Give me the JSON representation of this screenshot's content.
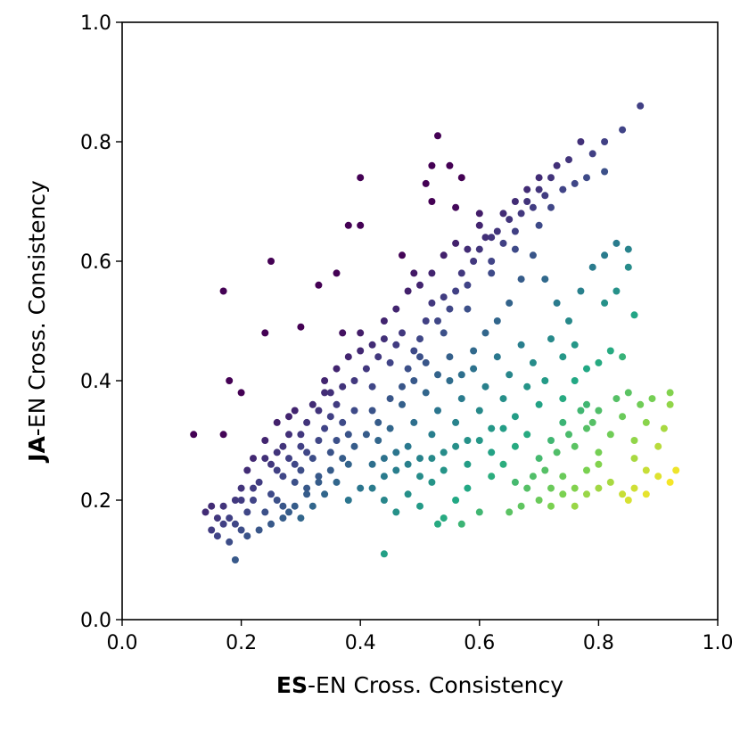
{
  "chart_data": {
    "type": "scatter",
    "xlabel_bold": "ES",
    "xlabel_rest": "-EN Cross. Consistency",
    "ylabel_bold": "JA",
    "ylabel_rest": "-EN Cross. Consistency",
    "xlim": [
      0.0,
      1.0
    ],
    "ylim": [
      0.0,
      1.0
    ],
    "x_ticks": [
      "0.0",
      "0.2",
      "0.4",
      "0.6",
      "0.8",
      "1.0"
    ],
    "y_ticks": [
      "0.0",
      "0.2",
      "0.4",
      "0.6",
      "0.8",
      "1.0"
    ],
    "grid": false,
    "legend": "none",
    "colormap": "viridis",
    "colormap_stops": [
      "#440154",
      "#414487",
      "#2a788e",
      "#22a884",
      "#7ad151",
      "#fde725"
    ],
    "point_radius": 4,
    "points": [
      [
        0.12,
        0.31
      ],
      [
        0.15,
        0.15
      ],
      [
        0.16,
        0.14
      ],
      [
        0.17,
        0.16
      ],
      [
        0.18,
        0.13
      ],
      [
        0.19,
        0.1
      ],
      [
        0.18,
        0.17
      ],
      [
        0.19,
        0.2
      ],
      [
        0.2,
        0.15
      ],
      [
        0.21,
        0.18
      ],
      [
        0.17,
        0.31
      ],
      [
        0.18,
        0.4
      ],
      [
        0.2,
        0.38
      ],
      [
        0.2,
        0.22
      ],
      [
        0.21,
        0.25
      ],
      [
        0.22,
        0.2
      ],
      [
        0.22,
        0.27
      ],
      [
        0.23,
        0.23
      ],
      [
        0.24,
        0.18
      ],
      [
        0.24,
        0.3
      ],
      [
        0.25,
        0.26
      ],
      [
        0.25,
        0.21
      ],
      [
        0.26,
        0.28
      ],
      [
        0.26,
        0.33
      ],
      [
        0.27,
        0.24
      ],
      [
        0.27,
        0.19
      ],
      [
        0.28,
        0.27
      ],
      [
        0.28,
        0.31
      ],
      [
        0.29,
        0.23
      ],
      [
        0.29,
        0.35
      ],
      [
        0.3,
        0.25
      ],
      [
        0.3,
        0.29
      ],
      [
        0.31,
        0.22
      ],
      [
        0.31,
        0.33
      ],
      [
        0.32,
        0.27
      ],
      [
        0.32,
        0.36
      ],
      [
        0.33,
        0.24
      ],
      [
        0.33,
        0.3
      ],
      [
        0.34,
        0.32
      ],
      [
        0.34,
        0.38
      ],
      [
        0.35,
        0.28
      ],
      [
        0.35,
        0.34
      ],
      [
        0.36,
        0.3
      ],
      [
        0.36,
        0.36
      ],
      [
        0.37,
        0.33
      ],
      [
        0.37,
        0.39
      ],
      [
        0.38,
        0.26
      ],
      [
        0.38,
        0.31
      ],
      [
        0.39,
        0.35
      ],
      [
        0.39,
        0.4
      ],
      [
        0.3,
        0.31
      ],
      [
        0.28,
        0.34
      ],
      [
        0.26,
        0.25
      ],
      [
        0.24,
        0.27
      ],
      [
        0.22,
        0.22
      ],
      [
        0.33,
        0.35
      ],
      [
        0.35,
        0.38
      ],
      [
        0.31,
        0.28
      ],
      [
        0.29,
        0.26
      ],
      [
        0.27,
        0.29
      ],
      [
        0.24,
        0.48
      ],
      [
        0.25,
        0.6
      ],
      [
        0.17,
        0.55
      ],
      [
        0.3,
        0.49
      ],
      [
        0.33,
        0.56
      ],
      [
        0.36,
        0.58
      ],
      [
        0.38,
        0.66
      ],
      [
        0.4,
        0.66
      ],
      [
        0.4,
        0.74
      ],
      [
        0.37,
        0.48
      ],
      [
        0.4,
        0.45
      ],
      [
        0.41,
        0.42
      ],
      [
        0.42,
        0.39
      ],
      [
        0.43,
        0.44
      ],
      [
        0.44,
        0.47
      ],
      [
        0.45,
        0.43
      ],
      [
        0.46,
        0.46
      ],
      [
        0.47,
        0.48
      ],
      [
        0.48,
        0.42
      ],
      [
        0.49,
        0.45
      ],
      [
        0.5,
        0.47
      ],
      [
        0.51,
        0.5
      ],
      [
        0.52,
        0.53
      ],
      [
        0.53,
        0.5
      ],
      [
        0.54,
        0.54
      ],
      [
        0.55,
        0.52
      ],
      [
        0.56,
        0.55
      ],
      [
        0.57,
        0.58
      ],
      [
        0.58,
        0.56
      ],
      [
        0.59,
        0.6
      ],
      [
        0.6,
        0.62
      ],
      [
        0.61,
        0.64
      ],
      [
        0.62,
        0.6
      ],
      [
        0.63,
        0.65
      ],
      [
        0.64,
        0.63
      ],
      [
        0.65,
        0.67
      ],
      [
        0.66,
        0.65
      ],
      [
        0.67,
        0.68
      ],
      [
        0.68,
        0.7
      ],
      [
        0.69,
        0.69
      ],
      [
        0.7,
        0.72
      ],
      [
        0.71,
        0.71
      ],
      [
        0.72,
        0.74
      ],
      [
        0.73,
        0.76
      ],
      [
        0.74,
        0.72
      ],
      [
        0.75,
        0.77
      ],
      [
        0.77,
        0.8
      ],
      [
        0.79,
        0.78
      ],
      [
        0.81,
        0.8
      ],
      [
        0.84,
        0.82
      ],
      [
        0.87,
        0.86
      ],
      [
        0.81,
        0.75
      ],
      [
        0.78,
        0.74
      ],
      [
        0.76,
        0.73
      ],
      [
        0.7,
        0.66
      ],
      [
        0.66,
        0.62
      ],
      [
        0.62,
        0.58
      ],
      [
        0.58,
        0.52
      ],
      [
        0.54,
        0.48
      ],
      [
        0.5,
        0.44
      ],
      [
        0.53,
        0.81
      ],
      [
        0.52,
        0.76
      ],
      [
        0.55,
        0.76
      ],
      [
        0.51,
        0.73
      ],
      [
        0.57,
        0.74
      ],
      [
        0.52,
        0.7
      ],
      [
        0.56,
        0.69
      ],
      [
        0.6,
        0.68
      ],
      [
        0.47,
        0.61
      ],
      [
        0.49,
        0.58
      ],
      [
        0.42,
        0.35
      ],
      [
        0.43,
        0.3
      ],
      [
        0.44,
        0.27
      ],
      [
        0.45,
        0.32
      ],
      [
        0.46,
        0.25
      ],
      [
        0.47,
        0.36
      ],
      [
        0.48,
        0.29
      ],
      [
        0.49,
        0.33
      ],
      [
        0.5,
        0.27
      ],
      [
        0.51,
        0.38
      ],
      [
        0.52,
        0.31
      ],
      [
        0.53,
        0.35
      ],
      [
        0.54,
        0.28
      ],
      [
        0.55,
        0.4
      ],
      [
        0.56,
        0.33
      ],
      [
        0.57,
        0.37
      ],
      [
        0.58,
        0.3
      ],
      [
        0.59,
        0.42
      ],
      [
        0.6,
        0.35
      ],
      [
        0.61,
        0.39
      ],
      [
        0.62,
        0.32
      ],
      [
        0.63,
        0.44
      ],
      [
        0.64,
        0.37
      ],
      [
        0.65,
        0.41
      ],
      [
        0.66,
        0.34
      ],
      [
        0.67,
        0.46
      ],
      [
        0.68,
        0.39
      ],
      [
        0.69,
        0.43
      ],
      [
        0.7,
        0.36
      ],
      [
        0.71,
        0.4
      ],
      [
        0.42,
        0.22
      ],
      [
        0.44,
        0.2
      ],
      [
        0.46,
        0.18
      ],
      [
        0.48,
        0.21
      ],
      [
        0.5,
        0.19
      ],
      [
        0.52,
        0.23
      ],
      [
        0.54,
        0.17
      ],
      [
        0.56,
        0.2
      ],
      [
        0.58,
        0.22
      ],
      [
        0.6,
        0.18
      ],
      [
        0.44,
        0.11
      ],
      [
        0.53,
        0.16
      ],
      [
        0.57,
        0.16
      ],
      [
        0.65,
        0.18
      ],
      [
        0.67,
        0.19
      ],
      [
        0.7,
        0.2
      ],
      [
        0.72,
        0.19
      ],
      [
        0.68,
        0.22
      ],
      [
        0.62,
        0.24
      ],
      [
        0.64,
        0.26
      ],
      [
        0.66,
        0.29
      ],
      [
        0.68,
        0.31
      ],
      [
        0.7,
        0.27
      ],
      [
        0.72,
        0.3
      ],
      [
        0.74,
        0.33
      ],
      [
        0.76,
        0.29
      ],
      [
        0.78,
        0.32
      ],
      [
        0.8,
        0.28
      ],
      [
        0.82,
        0.31
      ],
      [
        0.84,
        0.34
      ],
      [
        0.86,
        0.3
      ],
      [
        0.88,
        0.33
      ],
      [
        0.9,
        0.29
      ],
      [
        0.91,
        0.32
      ],
      [
        0.92,
        0.36
      ],
      [
        0.92,
        0.38
      ],
      [
        0.89,
        0.37
      ],
      [
        0.87,
        0.36
      ],
      [
        0.85,
        0.38
      ],
      [
        0.83,
        0.37
      ],
      [
        0.74,
        0.37
      ],
      [
        0.76,
        0.4
      ],
      [
        0.78,
        0.36
      ],
      [
        0.8,
        0.35
      ],
      [
        0.79,
        0.33
      ],
      [
        0.77,
        0.35
      ],
      [
        0.75,
        0.31
      ],
      [
        0.73,
        0.28
      ],
      [
        0.71,
        0.25
      ],
      [
        0.69,
        0.24
      ],
      [
        0.74,
        0.24
      ],
      [
        0.76,
        0.22
      ],
      [
        0.78,
        0.25
      ],
      [
        0.8,
        0.26
      ],
      [
        0.82,
        0.23
      ],
      [
        0.84,
        0.21
      ],
      [
        0.86,
        0.27
      ],
      [
        0.88,
        0.25
      ],
      [
        0.9,
        0.24
      ],
      [
        0.92,
        0.23
      ],
      [
        0.93,
        0.25
      ],
      [
        0.85,
        0.2
      ],
      [
        0.86,
        0.22
      ],
      [
        0.88,
        0.21
      ],
      [
        0.8,
        0.22
      ],
      [
        0.78,
        0.21
      ],
      [
        0.76,
        0.19
      ],
      [
        0.72,
        0.22
      ],
      [
        0.74,
        0.21
      ],
      [
        0.66,
        0.23
      ],
      [
        0.72,
        0.47
      ],
      [
        0.74,
        0.44
      ],
      [
        0.76,
        0.46
      ],
      [
        0.78,
        0.42
      ],
      [
        0.8,
        0.43
      ],
      [
        0.82,
        0.45
      ],
      [
        0.84,
        0.44
      ],
      [
        0.75,
        0.5
      ],
      [
        0.77,
        0.55
      ],
      [
        0.79,
        0.59
      ],
      [
        0.81,
        0.61
      ],
      [
        0.83,
        0.63
      ],
      [
        0.85,
        0.62
      ],
      [
        0.86,
        0.51
      ],
      [
        0.85,
        0.59
      ],
      [
        0.83,
        0.55
      ],
      [
        0.81,
        0.53
      ],
      [
        0.73,
        0.53
      ],
      [
        0.71,
        0.57
      ],
      [
        0.69,
        0.61
      ],
      [
        0.67,
        0.57
      ],
      [
        0.65,
        0.53
      ],
      [
        0.63,
        0.5
      ],
      [
        0.61,
        0.48
      ],
      [
        0.59,
        0.45
      ],
      [
        0.57,
        0.41
      ],
      [
        0.55,
        0.44
      ],
      [
        0.53,
        0.41
      ],
      [
        0.51,
        0.43
      ],
      [
        0.49,
        0.4
      ],
      [
        0.47,
        0.39
      ],
      [
        0.45,
        0.37
      ],
      [
        0.43,
        0.33
      ],
      [
        0.41,
        0.31
      ],
      [
        0.39,
        0.29
      ],
      [
        0.37,
        0.27
      ],
      [
        0.35,
        0.25
      ],
      [
        0.33,
        0.23
      ],
      [
        0.31,
        0.21
      ],
      [
        0.29,
        0.19
      ],
      [
        0.27,
        0.17
      ],
      [
        0.25,
        0.16
      ],
      [
        0.23,
        0.15
      ],
      [
        0.21,
        0.14
      ],
      [
        0.19,
        0.16
      ],
      [
        0.17,
        0.19
      ],
      [
        0.15,
        0.19
      ],
      [
        0.14,
        0.18
      ],
      [
        0.16,
        0.17
      ],
      [
        0.2,
        0.2
      ],
      [
        0.34,
        0.4
      ],
      [
        0.36,
        0.42
      ],
      [
        0.38,
        0.44
      ],
      [
        0.4,
        0.48
      ],
      [
        0.42,
        0.46
      ],
      [
        0.44,
        0.5
      ],
      [
        0.46,
        0.52
      ],
      [
        0.48,
        0.55
      ],
      [
        0.5,
        0.56
      ],
      [
        0.52,
        0.58
      ],
      [
        0.54,
        0.61
      ],
      [
        0.56,
        0.63
      ],
      [
        0.58,
        0.62
      ],
      [
        0.6,
        0.66
      ],
      [
        0.62,
        0.64
      ],
      [
        0.64,
        0.68
      ],
      [
        0.66,
        0.7
      ],
      [
        0.68,
        0.72
      ],
      [
        0.7,
        0.74
      ],
      [
        0.72,
        0.69
      ],
      [
        0.6,
        0.3
      ],
      [
        0.62,
        0.28
      ],
      [
        0.64,
        0.32
      ],
      [
        0.58,
        0.26
      ],
      [
        0.56,
        0.29
      ],
      [
        0.54,
        0.25
      ],
      [
        0.52,
        0.27
      ],
      [
        0.5,
        0.24
      ],
      [
        0.48,
        0.26
      ],
      [
        0.46,
        0.28
      ],
      [
        0.44,
        0.24
      ],
      [
        0.42,
        0.26
      ],
      [
        0.4,
        0.22
      ],
      [
        0.38,
        0.2
      ],
      [
        0.36,
        0.23
      ],
      [
        0.34,
        0.21
      ],
      [
        0.32,
        0.19
      ],
      [
        0.3,
        0.17
      ],
      [
        0.28,
        0.18
      ],
      [
        0.26,
        0.2
      ]
    ]
  }
}
